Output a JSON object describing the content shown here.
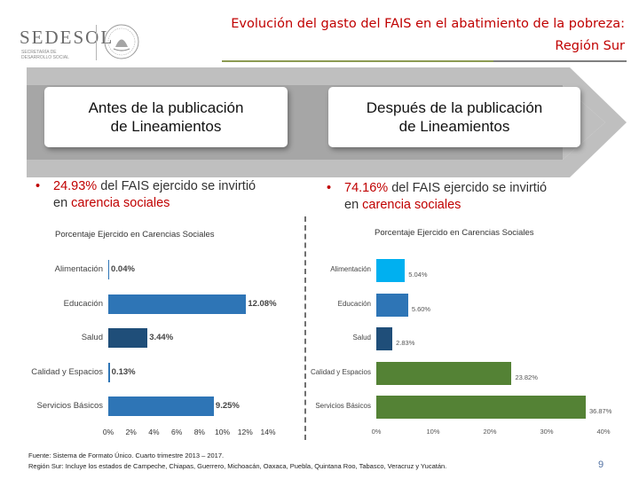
{
  "header": {
    "logo_text": "SEDESOL",
    "logo_subtitle": "SECRETARÍA DE DESARROLLO SOCIAL",
    "title_line1": "Evolución del gasto del FAIS en el abatimiento de la pobreza:",
    "title_line2": "Región Sur"
  },
  "colors": {
    "accent_red": "#c00000",
    "arrow_gray": "#bfbfbf",
    "bar_blue": "#2e75b6",
    "bar_navy": "#1f4e79",
    "bar_sky": "#00b0f0",
    "bar_green": "#548235"
  },
  "before": {
    "heading_line1": "Antes de la publicación",
    "heading_line2": "de Lineamientos",
    "bullet_pct": "24.93%",
    "bullet_mid": " del FAIS ejercido se invirtió",
    "bullet_pre2": "en ",
    "bullet_hl": "carencia sociales"
  },
  "after": {
    "heading_line1": "Después de la publicación",
    "heading_line2": "de Lineamientos",
    "bullet_pct": "74.16%",
    "bullet_mid": " del FAIS ejercido se invirtió",
    "bullet_pre2": "en ",
    "bullet_hl": "carencia sociales"
  },
  "chart_data": [
    {
      "type": "bar",
      "orientation": "horizontal",
      "title": "Porcentaje Ejercido en Carencias Sociales",
      "categories": [
        "Alimentación",
        "Educación",
        "Salud",
        "Calidad y Espacios",
        "Servicios Básicos"
      ],
      "values": [
        0.04,
        12.08,
        3.44,
        0.13,
        9.25
      ],
      "labels": [
        "0.04%",
        "12.08%",
        "3.44%",
        "0.13%",
        "9.25%"
      ],
      "colors": [
        "#2e75b6",
        "#2e75b6",
        "#1f4e79",
        "#2e75b6",
        "#2e75b6"
      ],
      "xlim": [
        0,
        14
      ],
      "ticks": [
        "0%",
        "2%",
        "4%",
        "6%",
        "8%",
        "10%",
        "12%",
        "14%"
      ]
    },
    {
      "type": "bar",
      "orientation": "horizontal",
      "title": "Porcentaje Ejercido en Carencias Sociales",
      "categories": [
        "Alimentación",
        "Educación",
        "Salud",
        "Calidad y Espacios",
        "Servicios Básicos"
      ],
      "values": [
        5.04,
        5.6,
        2.83,
        23.82,
        36.87
      ],
      "labels": [
        "5.04%",
        "5.60%",
        "2.83%",
        "23.82%",
        "36.87%"
      ],
      "colors": [
        "#00b0f0",
        "#2e75b6",
        "#1f4e79",
        "#548235",
        "#548235"
      ],
      "xlim": [
        0,
        40
      ],
      "ticks": [
        "0%",
        "10%",
        "20%",
        "30%",
        "40%"
      ]
    }
  ],
  "footer": {
    "source_line1": "Fuente: Sistema de Formato Único. Cuarto trimestre 2013 – 2017.",
    "source_line2": "Región Sur: Incluye los estados de Campeche, Chiapas, Guerrero, Michoacán, Oaxaca, Puebla, Quintana Roo, Tabasco, Veracruz y Yucatán.",
    "page_number": "9"
  }
}
